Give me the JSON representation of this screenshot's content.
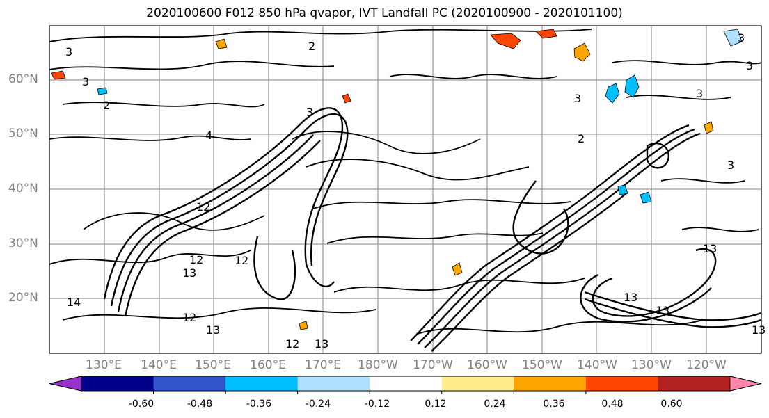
{
  "title": "2020100600 F012 850 hPa qvapor, IVT Landfall PC (2020100900 - 2020101100)",
  "map": {
    "lat_labels": [
      "60°N",
      "50°N",
      "40°N",
      "30°N",
      "20°N"
    ],
    "lon_labels": [
      "130°E",
      "140°E",
      "150°E",
      "160°E",
      "170°E",
      "180°W",
      "170°W",
      "160°W",
      "150°W",
      "140°W",
      "130°W",
      "120°W"
    ],
    "contour_labels": [
      "3",
      "2",
      "3",
      "2",
      "4",
      "3",
      "3",
      "2",
      "3",
      "3",
      "12",
      "12",
      "13",
      "12",
      "12",
      "13",
      "13",
      "12",
      "13",
      "14",
      "13",
      "13",
      "3",
      "13",
      "3"
    ]
  },
  "colorbar": {
    "colors": [
      "#9932cc",
      "#00008b",
      "#3355cc",
      "#00bfff",
      "#b0e0ff",
      "#ffffff",
      "#ffec8b",
      "#ffa500",
      "#ff4500",
      "#b22222",
      "#ff88aa"
    ],
    "tick_labels": [
      "-0.60",
      "-0.48",
      "-0.36",
      "-0.24",
      "-0.12",
      "0.12",
      "0.24",
      "0.36",
      "0.48",
      "0.60"
    ]
  }
}
